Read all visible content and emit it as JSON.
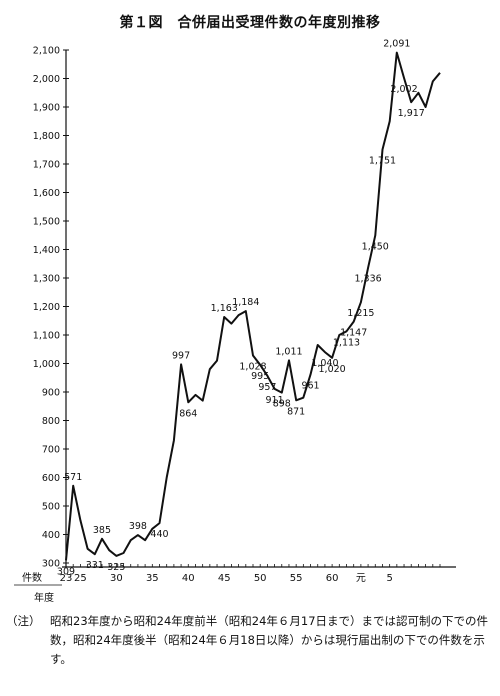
{
  "title": "第１図　合併届出受理件数の年度別推移",
  "note": {
    "label": "（注）",
    "text": "昭和23年度から昭和24年度前半（昭和24年６月17日まで）までは認可制の下での件数，昭和24年度後半（昭和24年６月18日以降）からは現行届出制の下での件数を示す。"
  },
  "chart_data": {
    "type": "line",
    "title": "第１図　合併届出受理件数の年度別推移",
    "ylabel": "件数",
    "xlabel": "年度",
    "ylim": [
      300,
      2100
    ],
    "yticks": [
      "300",
      "400",
      "500",
      "600",
      "700",
      "800",
      "900",
      "1,000",
      "1,100",
      "1,200",
      "1,300",
      "1,400",
      "1,500",
      "1,600",
      "1,700",
      "1,800",
      "1,900",
      "2,000",
      "2,100"
    ],
    "xticks": [
      {
        "label": "23",
        "x": 0
      },
      {
        "label": "25",
        "x": 2
      },
      {
        "label": "30",
        "x": 7
      },
      {
        "label": "35",
        "x": 12
      },
      {
        "label": "40",
        "x": 17
      },
      {
        "label": "45",
        "x": 22
      },
      {
        "label": "50",
        "x": 27
      },
      {
        "label": "55",
        "x": 32
      },
      {
        "label": "60",
        "x": 37
      },
      {
        "label": "元",
        "x": 41
      },
      {
        "label": "5",
        "x": 45
      }
    ],
    "grid": false,
    "series": [
      {
        "values": [
          309,
          571,
          450,
          350,
          331,
          385,
          345,
          325,
          335,
          380,
          398,
          380,
          420,
          440,
          600,
          730,
          997,
          864,
          890,
          870,
          980,
          1010,
          1163,
          1140,
          1170,
          1184,
          1028,
          995,
          957,
          911,
          898,
          1011,
          871,
          880,
          961,
          1065,
          1040,
          1020,
          1100,
          1113,
          1147,
          1215,
          1336,
          1450,
          1751,
          1850,
          2091,
          2002,
          1917,
          1950,
          1900,
          1990,
          2020
        ]
      }
    ],
    "annotations": [
      {
        "text": "309",
        "i": 0
      },
      {
        "text": "571",
        "i": 1
      },
      {
        "text": "331",
        "i": 4
      },
      {
        "text": "385",
        "i": 5
      },
      {
        "text": "325",
        "i": 7
      },
      {
        "text": "398",
        "i": 10
      },
      {
        "text": "440",
        "i": 13
      },
      {
        "text": "997",
        "i": 16
      },
      {
        "text": "864",
        "i": 17
      },
      {
        "text": "1,163",
        "i": 22
      },
      {
        "text": "1,184",
        "i": 25
      },
      {
        "text": "1,028",
        "i": 26
      },
      {
        "text": "995",
        "i": 27
      },
      {
        "text": "957",
        "i": 28
      },
      {
        "text": "911",
        "i": 29
      },
      {
        "text": "898",
        "i": 30
      },
      {
        "text": "1,011",
        "i": 31
      },
      {
        "text": "871",
        "i": 32
      },
      {
        "text": "961",
        "i": 34
      },
      {
        "text": "1,040",
        "i": 36
      },
      {
        "text": "1,020",
        "i": 37
      },
      {
        "text": "1,147",
        "i": 40
      },
      {
        "text": "1,113",
        "i": 39
      },
      {
        "text": "1,215",
        "i": 41
      },
      {
        "text": "1,336",
        "i": 42
      },
      {
        "text": "1,450",
        "i": 43
      },
      {
        "text": "1,751",
        "i": 44
      },
      {
        "text": "2,091",
        "i": 46
      },
      {
        "text": "2,002",
        "i": 47
      },
      {
        "text": "1,917",
        "i": 48
      }
    ]
  }
}
